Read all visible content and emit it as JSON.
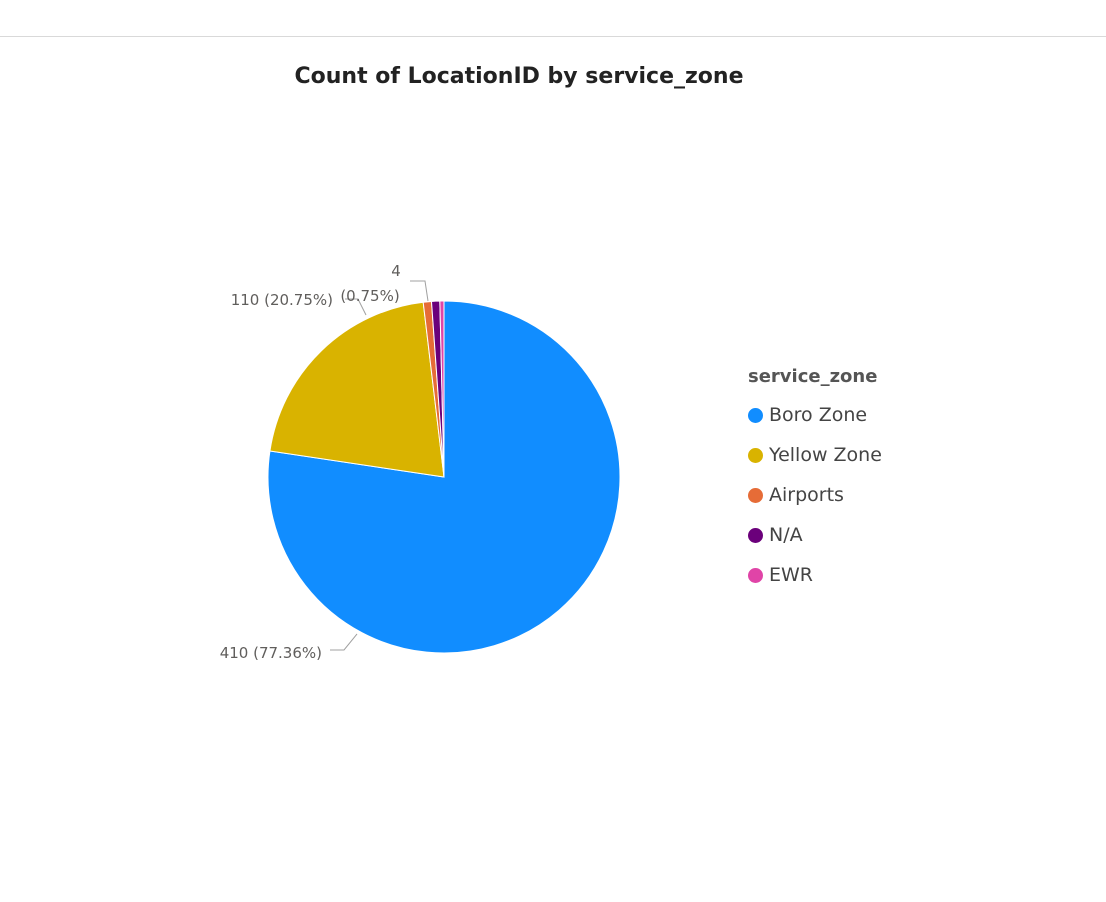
{
  "chart_data": {
    "type": "pie",
    "title": "Count of LocationID by service_zone",
    "legend_title": "service_zone",
    "legend_position": "right",
    "categories": [
      "Boro Zone",
      "Yellow Zone",
      "Airports",
      "N/A",
      "EWR"
    ],
    "values": [
      410,
      110,
      4,
      4,
      2
    ],
    "colors": [
      "#118dff",
      "#d9b300",
      "#e66c37",
      "#6b007b",
      "#e044a7"
    ],
    "data_labels": {
      "boro": "410 (77.36%)",
      "yellow": "110 (20.75%)",
      "small_value": "4",
      "small_pct": "(0.75%)"
    }
  }
}
